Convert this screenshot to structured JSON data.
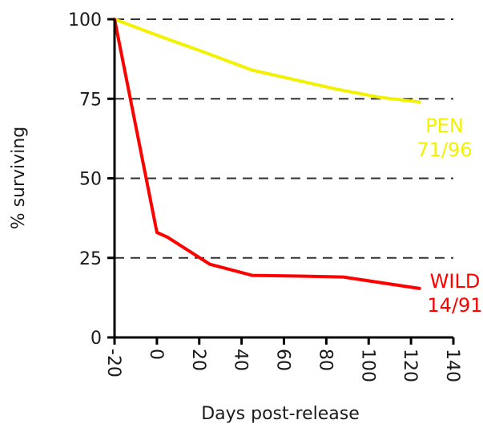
{
  "chart_data": {
    "type": "line",
    "xlabel": "Days post-release",
    "ylabel": "% surviving",
    "xlim": [
      -20,
      140
    ],
    "ylim": [
      0,
      100
    ],
    "x_ticks": [
      -20,
      0,
      20,
      40,
      60,
      80,
      100,
      120,
      140
    ],
    "y_ticks": [
      0,
      25,
      50,
      75,
      100
    ],
    "grid": "horizontal dashed at 25, 50, 75, 100",
    "series": [
      {
        "name": "PEN",
        "annotation": "71/96",
        "color": "#f2f200",
        "points": [
          [
            -20,
            100
          ],
          [
            0,
            95
          ],
          [
            25,
            89
          ],
          [
            45,
            84
          ],
          [
            65,
            81
          ],
          [
            85,
            78
          ],
          [
            105,
            75.5
          ],
          [
            124,
            74
          ]
        ]
      },
      {
        "name": "WILD",
        "annotation": "14/91",
        "color": "#ff0000",
        "points": [
          [
            -20,
            100
          ],
          [
            0,
            33
          ],
          [
            5,
            31.5
          ],
          [
            25,
            23
          ],
          [
            45,
            19.5
          ],
          [
            65,
            19.3
          ],
          [
            88,
            19
          ],
          [
            124,
            15.4
          ]
        ]
      }
    ]
  }
}
